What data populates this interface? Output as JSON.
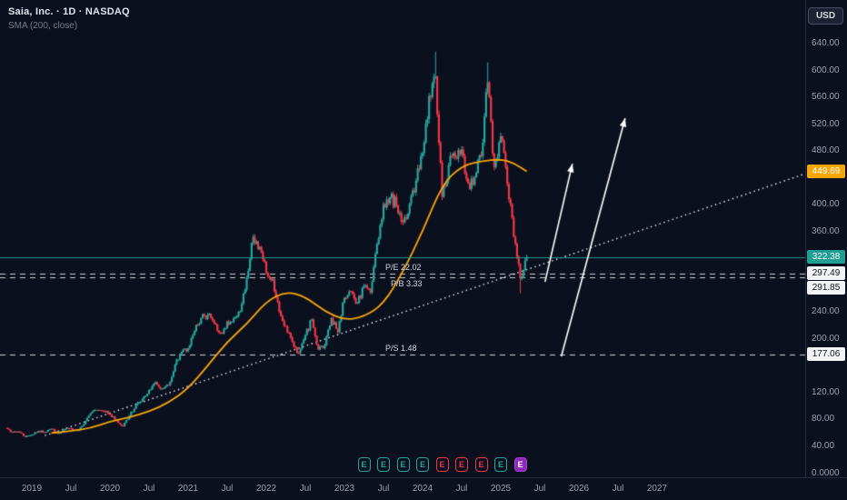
{
  "header": {
    "symbol_line": "Saia, Inc. · 1D · NASDAQ",
    "indicator_line": "SMA (200, close)",
    "currency_button": "USD"
  },
  "colors": {
    "background": "#0b101f",
    "up": "#26a69a",
    "down": "#f23645",
    "sma": "#f6a609",
    "last_price": "#1f9e94",
    "axis_text": "#9aa0b0",
    "drawing_white": "#ffffff"
  },
  "price_axis": {
    "ticks": [
      "640.00",
      "600.00",
      "560.00",
      "520.00",
      "480.00",
      "400.00",
      "360.00",
      "240.00",
      "200.00",
      "120.00",
      "80.00",
      "40.00"
    ],
    "zero_label": "0.0000"
  },
  "price_badges": [
    {
      "label": "449.69",
      "price": 449.69,
      "kind": "sma"
    },
    {
      "label": "322.38",
      "price": 322.38,
      "kind": "last"
    },
    {
      "label": "297.49",
      "price": 297.49,
      "kind": "level"
    },
    {
      "label": "291.85",
      "price": 291.85,
      "kind": "level"
    },
    {
      "label": "177.06",
      "price": 177.06,
      "kind": "level"
    }
  ],
  "time_axis": [
    {
      "label": "2019",
      "m": 4
    },
    {
      "label": "Jul",
      "m": 10
    },
    {
      "label": "2020",
      "m": 16
    },
    {
      "label": "Jul",
      "m": 22
    },
    {
      "label": "2021",
      "m": 28
    },
    {
      "label": "Jul",
      "m": 34
    },
    {
      "label": "2022",
      "m": 40
    },
    {
      "label": "Jul",
      "m": 46
    },
    {
      "label": "2023",
      "m": 52
    },
    {
      "label": "Jul",
      "m": 58
    },
    {
      "label": "2024",
      "m": 64
    },
    {
      "label": "Jul",
      "m": 70
    },
    {
      "label": "2025",
      "m": 76
    },
    {
      "label": "Jul",
      "m": 82
    },
    {
      "label": "2026",
      "m": 88
    },
    {
      "label": "Jul",
      "m": 94
    },
    {
      "label": "2027",
      "m": 100
    }
  ],
  "chart_data": {
    "type": "candlestick",
    "title": "Saia, Inc. · 1D · NASDAQ",
    "currency": "USD",
    "y_axis": {
      "visible_min": 0,
      "visible_max": 660,
      "tick_step": 40
    },
    "x_axis": {
      "start_month": "2018-09",
      "labels_end": "2027"
    },
    "monthly_closes": {
      "start": "2018-09",
      "values": [
        68,
        61,
        62,
        54,
        57,
        63,
        61,
        66,
        59,
        65,
        67,
        63,
        73,
        89,
        94,
        93,
        88,
        79,
        70,
        86,
        101,
        111,
        124,
        136,
        126,
        131,
        162,
        181,
        186,
        212,
        231,
        236,
        224,
        209,
        226,
        231,
        241,
        291,
        352,
        337,
        299,
        289,
        241,
        219,
        196,
        179,
        206,
        229,
        184,
        191,
        231,
        210,
        261,
        271,
        254,
        279,
        269,
        341,
        401,
        411,
        399,
        374,
        401,
        436,
        477,
        562,
        591,
        412,
        459,
        471,
        482,
        432,
        441,
        472,
        582,
        456,
        502,
        431,
        352,
        290,
        322.38
      ]
    },
    "extremes": [
      {
        "m": 66,
        "high": 628
      },
      {
        "m": 74,
        "high": 612
      },
      {
        "m": 79,
        "low": 268
      }
    ],
    "sma_200": {
      "label": "SMA (200, close)",
      "last_value": 449.69,
      "anchors": [
        [
          7,
          60
        ],
        [
          10,
          63
        ],
        [
          13,
          67
        ],
        [
          16,
          77
        ],
        [
          19,
          83
        ],
        [
          22,
          92
        ],
        [
          25,
          105
        ],
        [
          28,
          126
        ],
        [
          31,
          160
        ],
        [
          34,
          196
        ],
        [
          37,
          222
        ],
        [
          40,
          256
        ],
        [
          43,
          271
        ],
        [
          46,
          263
        ],
        [
          49,
          241
        ],
        [
          52,
          228
        ],
        [
          55,
          233
        ],
        [
          58,
          252
        ],
        [
          61,
          300
        ],
        [
          64,
          360
        ],
        [
          67,
          430
        ],
        [
          70,
          458
        ],
        [
          73,
          465
        ],
        [
          76,
          468
        ],
        [
          78,
          462
        ],
        [
          80,
          449.69
        ]
      ]
    },
    "last_price": 322.38,
    "levels": [
      {
        "label": "P/E 22.02",
        "price": 297.49,
        "side": "above"
      },
      {
        "label": "P/B 3.33",
        "price": 291.85,
        "side": "below"
      },
      {
        "label": "P/S 1.48",
        "price": 177.06,
        "side": "above"
      }
    ],
    "trendline": {
      "from": {
        "m": 6,
        "price": 56
      },
      "to": {
        "m": 123,
        "price": 447
      },
      "style": "dotted"
    },
    "arrows": [
      {
        "from": {
          "m": 82.8,
          "price": 285
        },
        "to": {
          "m": 87.0,
          "price": 461
        }
      },
      {
        "from": {
          "m": 85.3,
          "price": 174
        },
        "to": {
          "m": 95.1,
          "price": 529
        }
      }
    ],
    "earnings": {
      "letter": "E",
      "items": [
        {
          "m": 55,
          "status": "beat"
        },
        {
          "m": 58,
          "status": "beat"
        },
        {
          "m": 61,
          "status": "beat"
        },
        {
          "m": 64,
          "status": "beat"
        },
        {
          "m": 67,
          "status": "miss"
        },
        {
          "m": 70,
          "status": "miss"
        },
        {
          "m": 73,
          "status": "miss"
        },
        {
          "m": 76,
          "status": "beat"
        },
        {
          "m": 79,
          "status": "upcoming"
        }
      ]
    }
  }
}
